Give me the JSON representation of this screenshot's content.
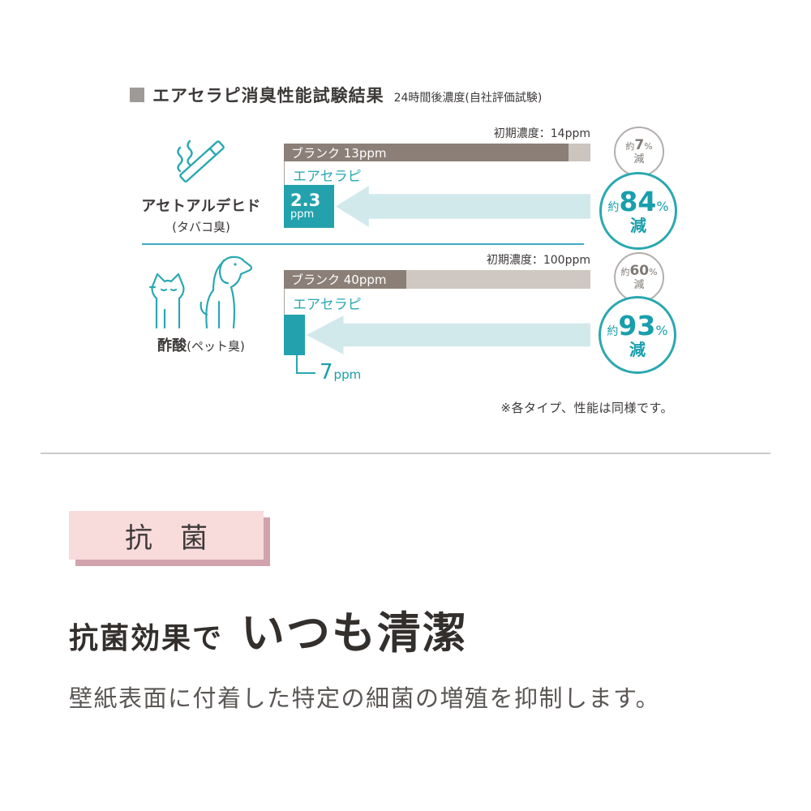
{
  "header": {
    "title": "エアセラピ消臭性能試験結果",
    "subtitle": "24時間後濃度(自社評価試験)"
  },
  "chart": {
    "rows": [
      {
        "substance": "アセトアルデヒド",
        "odor": "(タバコ臭)",
        "initial_label": "初期濃度：14ppm",
        "blank_label": "ブランク 13ppm",
        "product_label": "エアセラピ",
        "product_value": "2.3",
        "product_unit": "ppm",
        "blank_circle": {
          "approx": "約",
          "value": "7",
          "percent": "%",
          "reduction": "減"
        },
        "product_circle": {
          "approx": "約",
          "value": "84",
          "percent": "%",
          "reduction": "減"
        }
      },
      {
        "substance": "酢酸",
        "odor": "(ペット臭)",
        "initial_label": "初期濃度：100ppm",
        "blank_label": "ブランク 40ppm",
        "product_label": "エアセラピ",
        "product_value": "7",
        "product_unit": "ppm",
        "blank_circle": {
          "approx": "約",
          "value": "60",
          "percent": "%",
          "reduction": "減"
        },
        "product_circle": {
          "approx": "約",
          "value": "93",
          "percent": "%",
          "reduction": "減"
        }
      }
    ],
    "note": "※各タイプ、性能は同様です。"
  },
  "antibacterial": {
    "badge": "抗　菌",
    "heading_lead": "抗菌効果で",
    "heading_main": "いつも清潔",
    "body": "壁紙表面に付着した特定の細菌の増殖を抑制します。"
  },
  "colors": {
    "teal": "#23a2ad",
    "teal_text": "#2aa8b2",
    "arrow_light_teal": "#d2e9ec",
    "bar_dark_taupe": "#8b7f77",
    "bar_light_taupe": "#cbc4bf",
    "divider_teal": "#3caac2",
    "circle_gray": "#b3aeab",
    "pink_badge": "#f8dbdb",
    "pink_shadow": "#d2a2ad",
    "text_dark": "#3c3938"
  },
  "chart_data": {
    "type": "bar",
    "title": "エアセラピ消臭性能試験結果",
    "subtitle": "24時間後濃度(自社評価試験)",
    "unit": "ppm",
    "categories": [
      "アセトアルデヒド(タバコ臭)",
      "酢酸(ペット臭)"
    ],
    "series": [
      {
        "name": "初期濃度",
        "values": [
          14,
          100
        ]
      },
      {
        "name": "ブランク",
        "values": [
          13,
          40
        ]
      },
      {
        "name": "エアセラピ",
        "values": [
          2.3,
          7
        ]
      }
    ],
    "reduction_labels": [
      {
        "category": "アセトアルデヒド(タバコ臭)",
        "blank": "約7%減",
        "product": "約84%減"
      },
      {
        "category": "酢酸(ペット臭)",
        "blank": "約60%減",
        "product": "約93%減"
      }
    ],
    "note": "※各タイプ、性能は同様です。",
    "legend_position": "none",
    "grid": false
  }
}
